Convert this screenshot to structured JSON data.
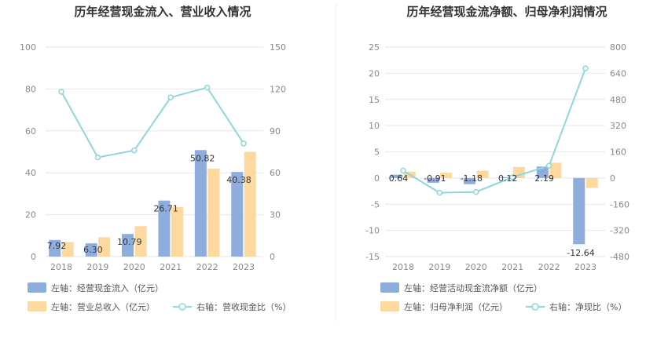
{
  "chart_data": [
    {
      "type": "bar",
      "title": "历年经营现金流入、营业收入情况",
      "categories": [
        "2018",
        "2019",
        "2020",
        "2021",
        "2022",
        "2023"
      ],
      "left_ylim": [
        0,
        100
      ],
      "left_ticks": [
        "0",
        "20",
        "40",
        "60",
        "80",
        "100"
      ],
      "right_ylim": [
        0,
        150
      ],
      "right_ticks": [
        "0",
        "30",
        "60",
        "90",
        "120",
        "150"
      ],
      "grid": true,
      "series": [
        {
          "name": "左轴：经营现金流入（亿元）",
          "kind": "bar",
          "axis": "left",
          "color": "#8eacdc",
          "values": [
            7.92,
            6.3,
            10.79,
            26.71,
            50.82,
            40.38
          ],
          "labels": [
            "7.92",
            "6.30",
            "10.79",
            "26.71",
            "50.82",
            "40.38"
          ]
        },
        {
          "name": "左轴：营业总收入（亿元）",
          "kind": "bar",
          "axis": "left",
          "color": "#fdd9a0",
          "values": [
            6.9,
            9.2,
            14.5,
            23.6,
            42.0,
            50.0
          ]
        },
        {
          "name": "右轴：营收现金比（%）",
          "kind": "line",
          "axis": "right",
          "color": "#8fd7d9",
          "values": [
            118,
            71,
            76,
            114,
            121,
            81
          ]
        }
      ]
    },
    {
      "type": "bar",
      "title": "历年经营现金流净额、归母净利润情况",
      "categories": [
        "2018",
        "2019",
        "2020",
        "2021",
        "2022",
        "2023"
      ],
      "left_ylim": [
        -15,
        25
      ],
      "left_ticks": [
        "-15",
        "-10",
        "-5",
        "0",
        "5",
        "10",
        "15",
        "20",
        "25"
      ],
      "right_ylim": [
        -480,
        800
      ],
      "right_ticks": [
        "-480",
        "-320",
        "-160",
        "0",
        "160",
        "320",
        "480",
        "640",
        "800"
      ],
      "grid": true,
      "series": [
        {
          "name": "左轴：经营活动现金流净额（亿元）",
          "kind": "bar",
          "axis": "left",
          "color": "#8eacdc",
          "values": [
            0.64,
            -0.91,
            -1.18,
            0.12,
            2.19,
            -12.64
          ],
          "labels": [
            "0.64",
            "-0.91",
            "-1.18",
            "0.12",
            "2.19",
            "-12.64"
          ]
        },
        {
          "name": "左轴：归母净利润（亿元）",
          "kind": "bar",
          "axis": "left",
          "color": "#fdd9a0",
          "values": [
            1.2,
            1.0,
            1.4,
            2.1,
            2.9,
            -1.9
          ]
        },
        {
          "name": "右轴：净现比（%）",
          "kind": "line",
          "axis": "right",
          "color": "#8fd7d9",
          "values": [
            45,
            -90,
            -85,
            5,
            75,
            670
          ]
        }
      ]
    }
  ]
}
